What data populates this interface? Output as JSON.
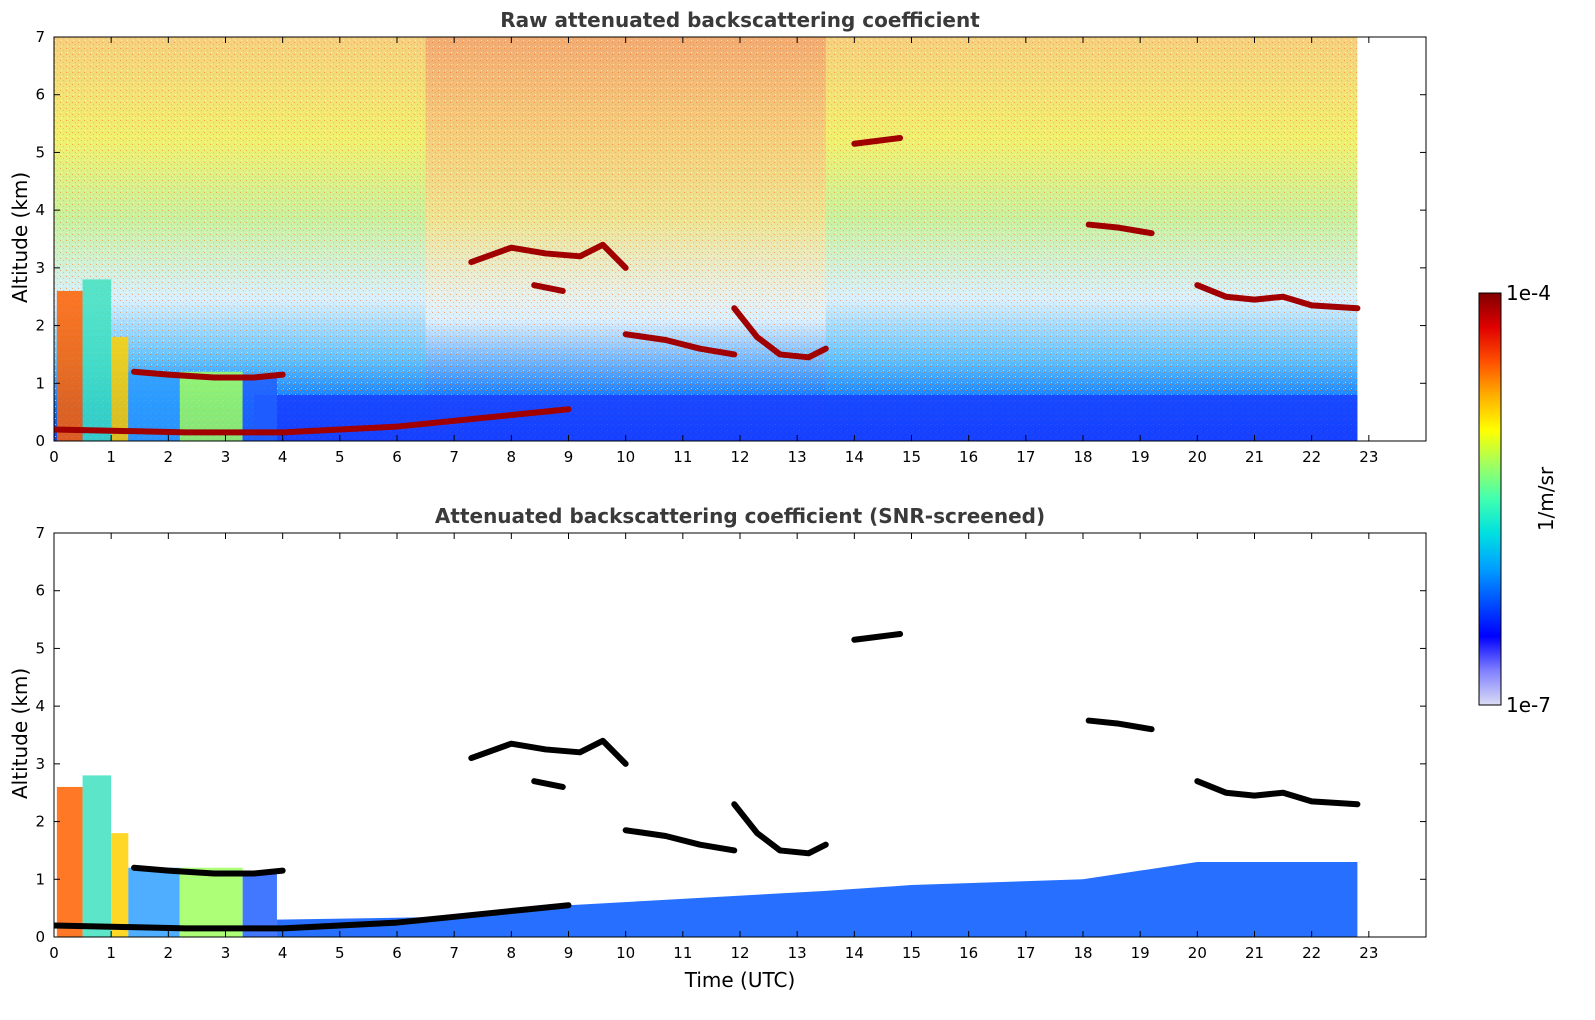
{
  "chart_data": [
    {
      "type": "heatmap",
      "title": "Raw attenuated backscattering coefficient",
      "xlabel": "",
      "ylabel": "Altitude (km)",
      "xlim": [
        0,
        24
      ],
      "ylim": [
        0,
        7
      ],
      "xticks": [
        "0",
        "1",
        "2",
        "3",
        "4",
        "5",
        "6",
        "7",
        "8",
        "9",
        "10",
        "11",
        "12",
        "13",
        "14",
        "15",
        "16",
        "17",
        "18",
        "19",
        "20",
        "21",
        "22",
        "23"
      ],
      "yticks": [
        "0",
        "1",
        "2",
        "3",
        "4",
        "5",
        "6",
        "7"
      ],
      "data_end_time": 22.8,
      "layers": [
        {
          "name": "boundary-layer",
          "points": [
            [
              0.0,
              0.2
            ],
            [
              2.3,
              0.15
            ],
            [
              4.0,
              0.15
            ],
            [
              5.0,
              0.2
            ],
            [
              6.0,
              0.25
            ],
            [
              7.0,
              0.35
            ],
            [
              8.0,
              0.45
            ],
            [
              9.0,
              0.55
            ]
          ]
        },
        {
          "name": "low-cloud",
          "points": [
            [
              1.4,
              1.2
            ],
            [
              2.0,
              1.15
            ],
            [
              2.8,
              1.1
            ],
            [
              3.5,
              1.1
            ],
            [
              4.0,
              1.15
            ]
          ]
        },
        {
          "name": "mid-cloud-a",
          "points": [
            [
              7.3,
              3.1
            ],
            [
              8.0,
              3.35
            ],
            [
              8.6,
              3.25
            ],
            [
              9.2,
              3.2
            ],
            [
              9.6,
              3.4
            ],
            [
              10.0,
              3.0
            ]
          ]
        },
        {
          "name": "mid-cloud-b",
          "points": [
            [
              8.4,
              2.7
            ],
            [
              8.9,
              2.6
            ]
          ]
        },
        {
          "name": "mid-cloud-c",
          "points": [
            [
              10.0,
              1.85
            ],
            [
              10.7,
              1.75
            ],
            [
              11.3,
              1.6
            ],
            [
              11.9,
              1.5
            ]
          ]
        },
        {
          "name": "mid-cloud-d",
          "points": [
            [
              11.9,
              2.3
            ],
            [
              12.3,
              1.8
            ],
            [
              12.7,
              1.5
            ],
            [
              13.2,
              1.45
            ],
            [
              13.5,
              1.6
            ]
          ]
        },
        {
          "name": "high-cloud",
          "points": [
            [
              14.0,
              5.15
            ],
            [
              14.4,
              5.2
            ],
            [
              14.8,
              5.25
            ]
          ]
        },
        {
          "name": "evening-cloud-a",
          "points": [
            [
              18.1,
              3.75
            ],
            [
              18.6,
              3.7
            ],
            [
              19.2,
              3.6
            ]
          ]
        },
        {
          "name": "evening-cloud-b",
          "points": [
            [
              20.0,
              2.7
            ],
            [
              20.5,
              2.5
            ],
            [
              21.0,
              2.45
            ],
            [
              21.5,
              2.5
            ],
            [
              22.0,
              2.35
            ],
            [
              22.8,
              2.3
            ]
          ]
        }
      ]
    },
    {
      "type": "heatmap",
      "title": "Attenuated backscattering coefficient (SNR-screened)",
      "xlabel": "Time (UTC)",
      "ylabel": "Altitude (km)",
      "xlim": [
        0,
        24
      ],
      "ylim": [
        0,
        7
      ],
      "xticks": [
        "0",
        "1",
        "2",
        "3",
        "4",
        "5",
        "6",
        "7",
        "8",
        "9",
        "10",
        "11",
        "12",
        "13",
        "14",
        "15",
        "16",
        "17",
        "18",
        "19",
        "20",
        "21",
        "22",
        "23"
      ],
      "yticks": [
        "0",
        "1",
        "2",
        "3",
        "4",
        "5",
        "6",
        "7"
      ],
      "data_end_time": 22.8
    }
  ],
  "colorbar": {
    "label": "1/m/sr",
    "max_label": "1e-4",
    "min_label": "1e-7",
    "colors": [
      "#dcdcf5",
      "#8080ff",
      "#0000ff",
      "#0050ff",
      "#00a0ff",
      "#00e0e0",
      "#40ffb0",
      "#a0ff60",
      "#ffff00",
      "#ffb000",
      "#ff5000",
      "#e00000",
      "#800000"
    ]
  }
}
